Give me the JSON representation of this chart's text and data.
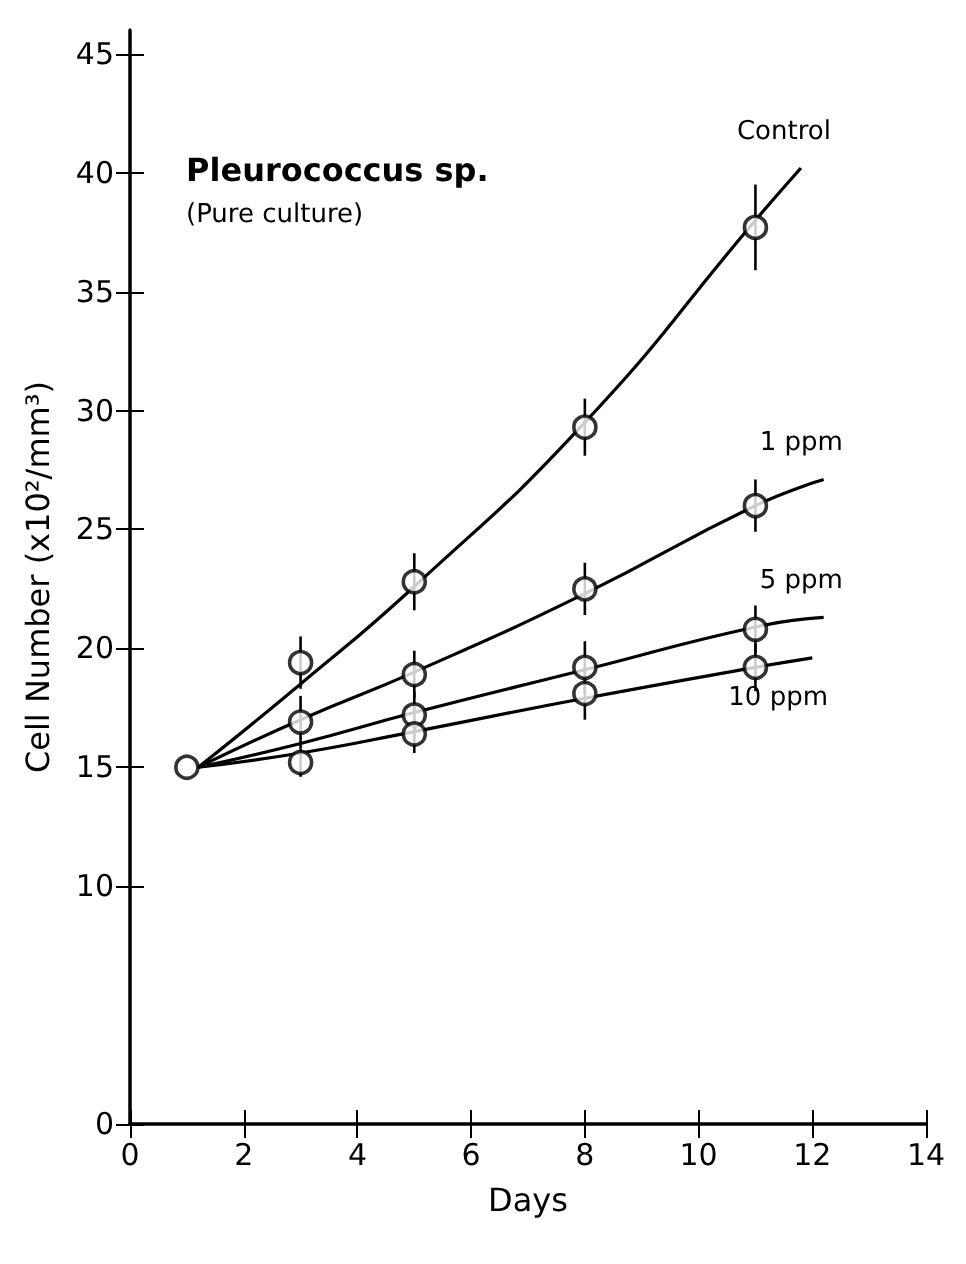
{
  "chart_data": {
    "type": "scatter",
    "title": "Pleurococcus sp.",
    "subtitle": "(Pure culture)",
    "xlabel": "Days",
    "ylabel": "Cell Number (x10²/mm³)",
    "xlim": [
      0,
      14
    ],
    "xticks": [
      0,
      2,
      4,
      6,
      8,
      10,
      12,
      14
    ],
    "ylim": [
      0,
      46
    ],
    "yticks": [
      0,
      10,
      15,
      20,
      25,
      30,
      35,
      40,
      45
    ],
    "grid": false,
    "legend": false,
    "series": [
      {
        "marker": "circle",
        "color": "#000000",
        "x": [
          1,
          3,
          5,
          8,
          11
        ],
        "values": [
          15,
          19.4,
          22.8,
          29.3,
          37.7
        ],
        "errors": [
          null,
          1.1,
          1.2,
          1.2,
          1.8
        ]
      },
      {
        "marker": "circle",
        "color": "#000000",
        "x": [
          3,
          5,
          8,
          11
        ],
        "values": [
          16.9,
          18.9,
          22.5,
          26.0
        ],
        "errors": [
          1.1,
          1.0,
          1.1,
          1.1
        ]
      },
      {
        "marker": "circle",
        "color": "#000000",
        "x": [
          5,
          8,
          11
        ],
        "values": [
          17.2,
          19.2,
          20.8
        ],
        "errors": [
          1.0,
          1.1,
          1.0
        ]
      },
      {
        "marker": "circle",
        "color": "#000000",
        "x": [
          3,
          5,
          8,
          11
        ],
        "values": [
          15.2,
          16.4,
          18.1,
          19.2
        ],
        "errors": [
          0.6,
          0.8,
          1.1,
          1.0
        ]
      },
      {
        "type": "line",
        "marker": "none",
        "name": "Control",
        "color": "#000000",
        "x": [
          1.2,
          3,
          5,
          8,
          11,
          11.8
        ],
        "values": [
          15,
          18.5,
          22.6,
          29.5,
          38,
          40.2
        ]
      },
      {
        "type": "line",
        "marker": "none",
        "name": "1 ppm",
        "color": "#000000",
        "x": [
          1.2,
          3,
          5,
          8,
          11,
          12.2
        ],
        "values": [
          15,
          17,
          19,
          22.3,
          26,
          27.1
        ]
      },
      {
        "type": "line",
        "marker": "none",
        "name": "5 ppm",
        "color": "#000000",
        "x": [
          1.2,
          3,
          5,
          8,
          11,
          12.2
        ],
        "values": [
          15,
          16,
          17.3,
          19.1,
          20.9,
          21.3
        ]
      },
      {
        "type": "line",
        "marker": "none",
        "name": "10 ppm",
        "color": "#000000",
        "x": [
          1.2,
          3,
          5,
          8,
          11,
          12
        ],
        "values": [
          15,
          15.6,
          16.5,
          17.9,
          19.2,
          19.6
        ]
      }
    ]
  }
}
